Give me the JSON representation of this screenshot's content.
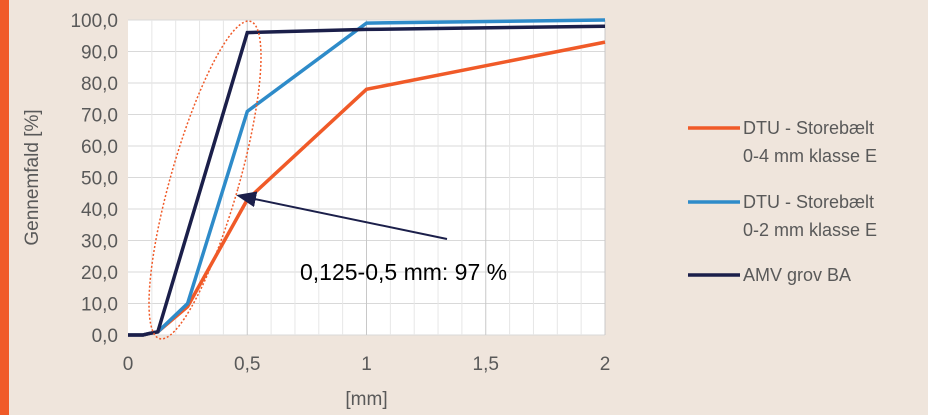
{
  "chart_data": {
    "type": "line",
    "xlabel": "[mm]",
    "ylabel": "Gennemfald [%]",
    "xlim": [
      0,
      2
    ],
    "ylim": [
      0,
      100
    ],
    "xticks": [
      0,
      0.5,
      1,
      1.5,
      2
    ],
    "xtick_labels": [
      "0",
      "0,5",
      "1",
      "1,5",
      "2"
    ],
    "yticks": [
      0,
      10,
      20,
      30,
      40,
      50,
      60,
      70,
      80,
      90,
      100
    ],
    "ytick_labels": [
      "0,0",
      "10,0",
      "20,0",
      "30,0",
      "40,0",
      "50,0",
      "60,0",
      "70,0",
      "80,0",
      "90,0",
      "100,0"
    ],
    "grid": true,
    "legend_position": "right",
    "series": [
      {
        "name": "DTU - Storebælt 0-4 mm klasse E",
        "legend_lines": [
          "DTU - Storebælt",
          "0-4 mm klasse E"
        ],
        "color": "#f05a28",
        "points": [
          [
            0,
            0
          ],
          [
            0.063,
            0
          ],
          [
            0.09,
            0.5
          ],
          [
            0.125,
            1
          ],
          [
            0.25,
            9
          ],
          [
            0.5,
            43
          ],
          [
            1,
            78
          ],
          [
            2,
            93
          ]
        ]
      },
      {
        "name": "DTU - Storebælt 0-2 mm klasse E",
        "legend_lines": [
          "DTU - Storebælt",
          "0-2 mm klasse E"
        ],
        "color": "#2e8bc9",
        "points": [
          [
            0,
            0
          ],
          [
            0.063,
            0
          ],
          [
            0.09,
            0.5
          ],
          [
            0.125,
            1
          ],
          [
            0.25,
            10
          ],
          [
            0.5,
            71
          ],
          [
            1,
            99
          ],
          [
            2,
            100
          ]
        ]
      },
      {
        "name": "AMV grov BA",
        "legend_lines": [
          "AMV grov BA"
        ],
        "color": "#1b1f4a",
        "points": [
          [
            0,
            0
          ],
          [
            0.063,
            0
          ],
          [
            0.09,
            0.5
          ],
          [
            0.125,
            1
          ],
          [
            0.5,
            96
          ],
          [
            1,
            97
          ],
          [
            2,
            98
          ]
        ]
      }
    ],
    "annotation": {
      "text": "0,125-0,5 mm: 97 %",
      "arrow_color": "#1b1f4a",
      "ellipse_color": "#f05a28"
    }
  }
}
